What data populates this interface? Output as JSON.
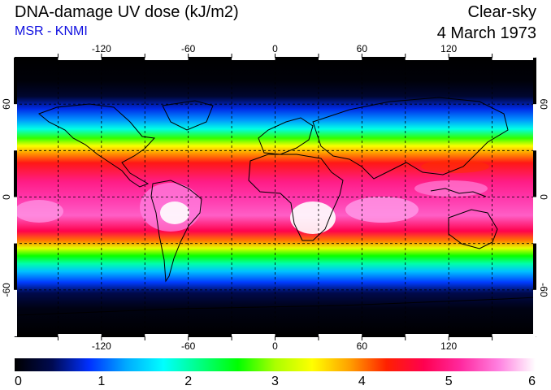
{
  "header": {
    "title": "DNA-damage UV dose (kJ/m2)",
    "subtitle": "MSR - KNMI",
    "sky_condition": "Clear-sky",
    "date": "4 March 1973"
  },
  "map": {
    "projection": "equirectangular",
    "lon_range": [
      -180,
      180
    ],
    "lat_range": [
      -90,
      90
    ],
    "lon_tick_labels": [
      "-120",
      "-60",
      "0",
      "60",
      "120"
    ],
    "lat_tick_labels": [
      "60",
      "0",
      "-60"
    ],
    "grid": "dashed every 30 degrees",
    "lat_band_dose": [
      {
        "lat": 90,
        "dose": 0.0
      },
      {
        "lat": 75,
        "dose": 0.05
      },
      {
        "lat": 65,
        "dose": 0.25
      },
      {
        "lat": 57,
        "dose": 0.8
      },
      {
        "lat": 50,
        "dose": 1.2
      },
      {
        "lat": 44,
        "dose": 1.8
      },
      {
        "lat": 38,
        "dose": 2.7
      },
      {
        "lat": 33,
        "dose": 3.4
      },
      {
        "lat": 28,
        "dose": 3.9
      },
      {
        "lat": 22,
        "dose": 4.4
      },
      {
        "lat": 10,
        "dose": 5.0
      },
      {
        "lat": 0,
        "dose": 5.2
      },
      {
        "lat": -12,
        "dose": 5.4
      },
      {
        "lat": -22,
        "dose": 4.7
      },
      {
        "lat": -28,
        "dose": 4.0
      },
      {
        "lat": -33,
        "dose": 3.3
      },
      {
        "lat": -38,
        "dose": 2.6
      },
      {
        "lat": -43,
        "dose": 2.0
      },
      {
        "lat": -48,
        "dose": 1.4
      },
      {
        "lat": -55,
        "dose": 0.9
      },
      {
        "lat": -62,
        "dose": 0.4
      },
      {
        "lat": -72,
        "dose": 0.1
      },
      {
        "lat": -90,
        "dose": 0.0
      }
    ],
    "peak_regions": [
      "South America",
      "southern Africa",
      "Indian Ocean",
      "western Pacific"
    ]
  },
  "colorbar": {
    "min": 0,
    "max": 6,
    "tick_labels": [
      "0",
      "1",
      "2",
      "3",
      "4",
      "5",
      "6"
    ],
    "colors": [
      "#000000",
      "#000a50",
      "#0030ff",
      "#00aaff",
      "#00ffff",
      "#00ff80",
      "#00ff00",
      "#aaff00",
      "#ffff00",
      "#ffa000",
      "#ff2000",
      "#ff0050",
      "#ff2aa0",
      "#ff80e0",
      "#ffffff"
    ]
  }
}
